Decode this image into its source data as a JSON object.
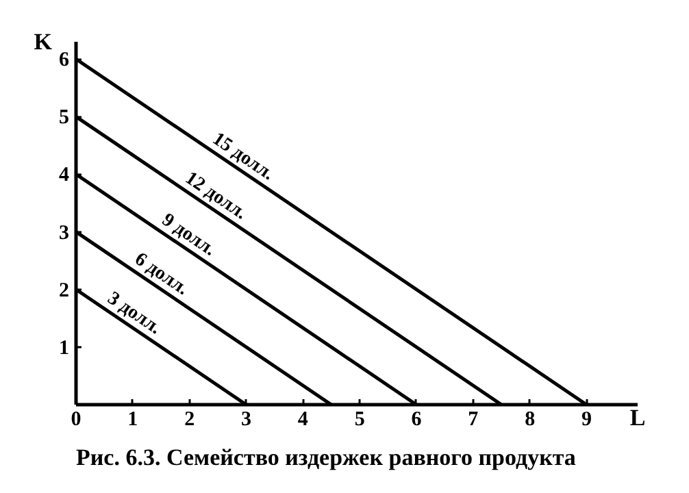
{
  "chart_data": {
    "type": "line",
    "title": "Рис. 6.3. Семейство издержек равного продукта",
    "xlabel": "L",
    "ylabel": "K",
    "xlim": [
      0,
      9.9
    ],
    "ylim": [
      0,
      6.3
    ],
    "xticks": [
      0,
      1,
      2,
      3,
      4,
      5,
      6,
      7,
      8,
      9
    ],
    "yticks": [
      1,
      2,
      3,
      4,
      5,
      6
    ],
    "grid": false,
    "legend": false,
    "marker": "none",
    "line_style": "solid",
    "series": [
      {
        "name": "3 долл.",
        "color": "#000000",
        "x": [
          0,
          3
        ],
        "values": [
          2,
          0
        ]
      },
      {
        "name": "6 долл.",
        "color": "#000000",
        "x": [
          0,
          4.5
        ],
        "values": [
          3,
          0
        ]
      },
      {
        "name": "9 долл.",
        "color": "#000000",
        "x": [
          0,
          6
        ],
        "values": [
          4,
          0
        ]
      },
      {
        "name": "12 долл.",
        "color": "#000000",
        "x": [
          0,
          7.5
        ],
        "values": [
          5,
          0
        ]
      },
      {
        "name": "15 долл.",
        "color": "#000000",
        "x": [
          0,
          9
        ],
        "values": [
          6,
          0
        ]
      }
    ]
  }
}
